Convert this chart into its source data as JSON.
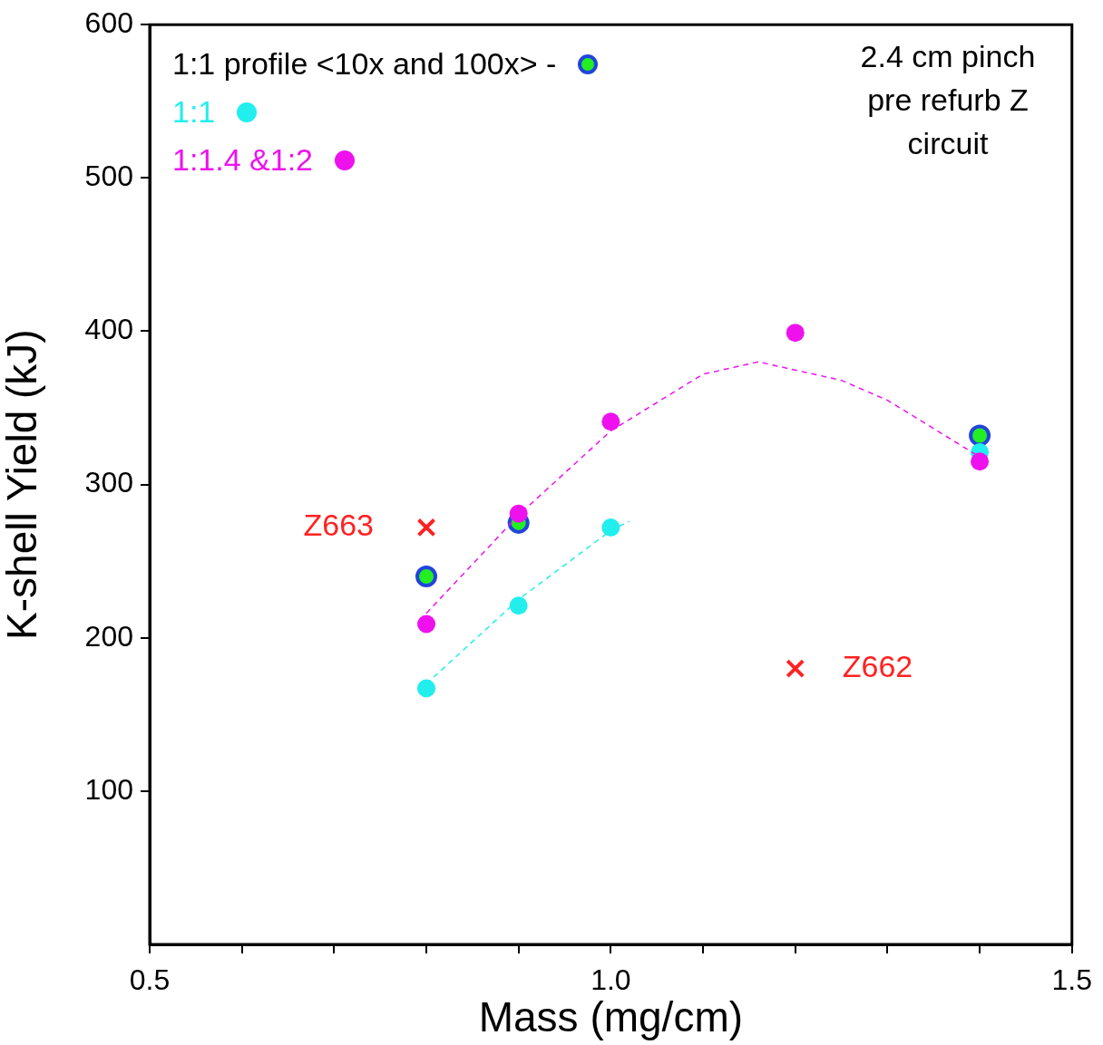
{
  "chart_data": {
    "type": "scatter",
    "xlabel": "Mass (mg/cm)",
    "ylabel": "K-shell Yield (kJ)",
    "xlim": [
      0.5,
      1.5
    ],
    "xticks": [
      0.5,
      {
        "value": 0.6,
        "label": null
      },
      {
        "value": 0.7,
        "label": null
      },
      {
        "value": 0.8,
        "label": null
      },
      {
        "value": 0.9,
        "label": null
      },
      {
        "value": 1,
        "label": "1.0"
      },
      {
        "value": 1.1,
        "label": null
      },
      {
        "value": 1.2,
        "label": null
      },
      {
        "value": 1.3,
        "label": null
      },
      {
        "value": 1.4,
        "label": null
      },
      1.5
    ],
    "ylim": [
      0,
      600
    ],
    "yticks": [
      100,
      200,
      300,
      400,
      500,
      600
    ],
    "grid": false,
    "legend": "top left",
    "annotations": [
      "2.4 cm pinch pre refurb Z circuit"
    ],
    "series": [
      {
        "name": "1:1 profile <10x and 100x> -",
        "color": "#2244dd",
        "marker": "circle",
        "x": [
          0.8,
          0.9,
          1.0,
          1.4
        ],
        "values": [
          240,
          275,
          null,
          332
        ]
      },
      {
        "name": "1:1",
        "color": "#22eeee",
        "marker": "circle",
        "x": [
          0.8,
          0.9,
          1.0,
          1.4
        ],
        "values": [
          167,
          221,
          272,
          321
        ]
      },
      {
        "name": "1:1.4 &1:2",
        "color": "#ee11ee",
        "marker": "circle",
        "x": [
          0.8,
          0.9,
          1.0,
          1.2,
          1.4
        ],
        "values": [
          209,
          281,
          341,
          399,
          315
        ]
      },
      {
        "type": "line",
        "color": "#ee11ee",
        "marker": "none",
        "line_style": "dashed",
        "x": [
          0.8,
          0.9,
          1.0,
          1.1,
          1.16,
          1.25,
          1.3,
          1.4
        ],
        "values": [
          216,
          280,
          335,
          372,
          380,
          368,
          355,
          318
        ]
      },
      {
        "type": "line",
        "color": "#22eeee",
        "marker": "none",
        "line_style": "dashed",
        "x": [
          0.8,
          0.9,
          1.0,
          1.02
        ],
        "values": [
          170,
          225,
          270,
          276
        ]
      },
      {
        "name": "Z663",
        "color": "#ff2222",
        "marker": "cross",
        "x": [
          0.8
        ],
        "values": [
          272
        ]
      },
      {
        "name": "Z662",
        "color": "#ff2222",
        "marker": "cross",
        "x": [
          1.2
        ],
        "values": [
          180
        ]
      }
    ]
  }
}
